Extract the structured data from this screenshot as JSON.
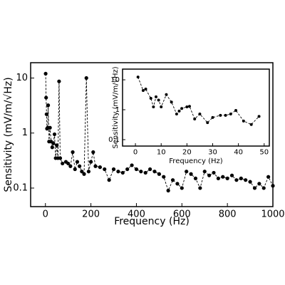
{
  "chart_data": [
    {
      "type": "line",
      "log_y": true,
      "line_style": "dashed",
      "xlabel": "Frequency (Hz)",
      "ylabel": "Sensitivity (mV/m/√Hz)",
      "xlim": [
        -65,
        1000
      ],
      "ylim": [
        0.046,
        19
      ],
      "xticks": [
        0,
        200,
        400,
        600,
        800,
        1000
      ],
      "yticks": [
        0.1,
        1,
        10
      ],
      "series": [
        {
          "color": "#000000",
          "x": [
            1,
            3,
            5,
            7,
            10,
            12,
            16,
            20,
            25,
            30,
            35,
            40,
            45,
            50,
            55,
            60,
            65,
            75,
            90,
            100,
            110,
            120,
            130,
            140,
            150,
            160,
            170,
            180,
            190,
            200,
            210,
            220,
            240,
            260,
            280,
            300,
            320,
            340,
            360,
            380,
            400,
            420,
            440,
            460,
            480,
            500,
            520,
            540,
            560,
            580,
            600,
            620,
            640,
            660,
            680,
            700,
            720,
            740,
            760,
            780,
            800,
            820,
            840,
            860,
            880,
            900,
            920,
            940,
            960,
            980,
            1000
          ],
          "values": [
            12,
            4.4,
            2.2,
            1.2,
            1.25,
            3.2,
            0.7,
            1.25,
            0.7,
            0.55,
            0.65,
            0.95,
            0.35,
            0.6,
            0.35,
            8.7,
            0.35,
            0.28,
            0.3,
            0.28,
            0.25,
            0.45,
            0.22,
            0.3,
            0.25,
            0.2,
            0.18,
            10,
            0.2,
            0.3,
            0.45,
            0.25,
            0.24,
            0.22,
            0.14,
            0.22,
            0.2,
            0.19,
            0.22,
            0.26,
            0.22,
            0.2,
            0.19,
            0.22,
            0.2,
            0.18,
            0.16,
            0.09,
            0.14,
            0.12,
            0.1,
            0.2,
            0.18,
            0.15,
            0.1,
            0.2,
            0.17,
            0.19,
            0.15,
            0.16,
            0.15,
            0.17,
            0.14,
            0.15,
            0.14,
            0.13,
            0.1,
            0.12,
            0.1,
            0.16,
            0.11
          ]
        }
      ]
    },
    {
      "type": "line",
      "log_y": true,
      "line_style": "dashed",
      "xlabel": "Frequency (Hz)",
      "ylabel": "Sensitivity (mV/m/√Hz)",
      "xlim": [
        -5,
        52
      ],
      "ylim": [
        0.061,
        22.8
      ],
      "xticks": [
        0,
        10,
        20,
        30,
        40,
        50
      ],
      "yticks": [
        0.1,
        1,
        10
      ],
      "series": [
        {
          "color": "#000000",
          "x": [
            1,
            3,
            4,
            6,
            7,
            8,
            9,
            10,
            12,
            14,
            16,
            17,
            18,
            20,
            21,
            23,
            25,
            28,
            30,
            33,
            35,
            37,
            39,
            42,
            45,
            48
          ],
          "values": [
            12.4,
            4.4,
            4.9,
            2.4,
            1.25,
            2.7,
            2.1,
            1.25,
            3.2,
            1.8,
            0.72,
            0.9,
            1.1,
            1.25,
            1.3,
            0.49,
            0.72,
            0.37,
            0.55,
            0.65,
            0.65,
            0.72,
            0.95,
            0.42,
            0.32,
            0.6
          ]
        }
      ]
    }
  ]
}
